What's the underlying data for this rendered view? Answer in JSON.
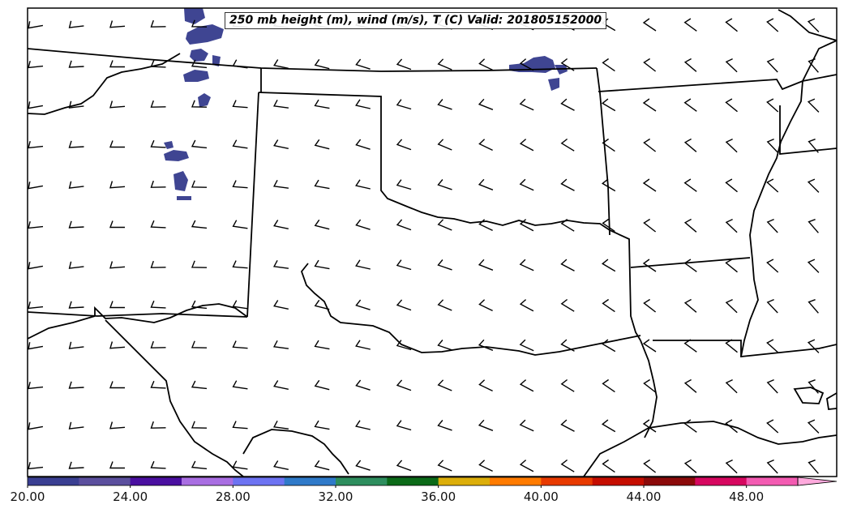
{
  "title": "250 mb height (m), wind (m/s), T (C) Valid: 201805152000",
  "colorbar": {
    "ticks": [
      "20.00",
      "24.00",
      "28.00",
      "32.00",
      "36.00",
      "40.00",
      "44.00",
      "48.00"
    ],
    "tick_values": [
      20,
      24,
      28,
      32,
      36,
      40,
      44,
      48
    ],
    "min": 20,
    "max": 52,
    "extend": "max",
    "bins": [
      {
        "from": 20,
        "to": 22,
        "color": "#3a3f92"
      },
      {
        "from": 22,
        "to": 24,
        "color": "#5b4f9e"
      },
      {
        "from": 24,
        "to": 26,
        "color": "#4a0fa0"
      },
      {
        "from": 26,
        "to": 28,
        "color": "#a96ee2"
      },
      {
        "from": 28,
        "to": 30,
        "color": "#6d73f2"
      },
      {
        "from": 30,
        "to": 32,
        "color": "#2f7ac9"
      },
      {
        "from": 32,
        "to": 34,
        "color": "#2e8e5e"
      },
      {
        "from": 34,
        "to": 36,
        "color": "#0b6a18"
      },
      {
        "from": 36,
        "to": 38,
        "color": "#dcae0a"
      },
      {
        "from": 38,
        "to": 40,
        "color": "#ff7b00"
      },
      {
        "from": 40,
        "to": 42,
        "color": "#e83a00"
      },
      {
        "from": 42,
        "to": 44,
        "color": "#c50d00"
      },
      {
        "from": 44,
        "to": 46,
        "color": "#8b0a0a"
      },
      {
        "from": 46,
        "to": 48,
        "color": "#d6075f"
      },
      {
        "from": 48,
        "to": 50,
        "color": "#f35bb2"
      },
      {
        "from": 50,
        "to": 52,
        "color": "#ffaadd"
      }
    ]
  },
  "colors": {
    "shading": "#3f4592",
    "boundaries": "#000000",
    "barbs": "#000000"
  }
}
